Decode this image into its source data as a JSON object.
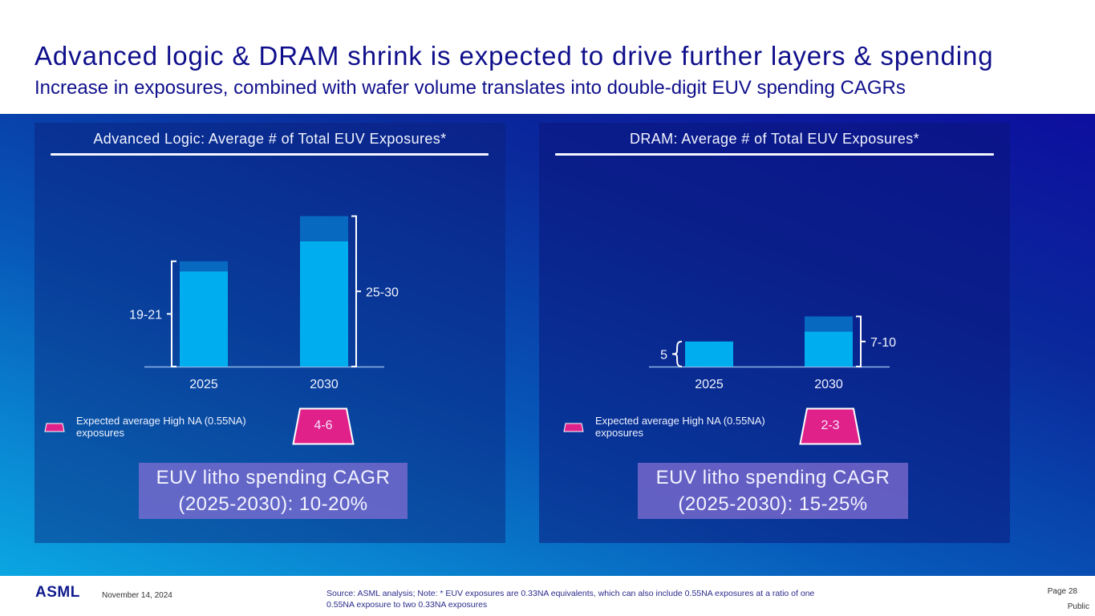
{
  "header": {
    "title": "Advanced logic & DRAM shrink is expected to drive further layers & spending",
    "subtitle": "Increase in exposures, combined with wafer volume translates into double-digit EUV spending CAGRs"
  },
  "colors": {
    "low_na_bar": "#00aeef",
    "high_na_segment": "#0869c0",
    "high_na_badge": "#e0218a",
    "cagr_box": "#7b6bd0",
    "title_text": "#0f0f8c"
  },
  "chart_data": [
    {
      "type": "bar",
      "stacked": true,
      "title": "Advanced Logic: Average # of Total EUV Exposures*",
      "categories": [
        "2025",
        "2030"
      ],
      "series": [
        {
          "name": "0.33NA exposures",
          "values": [
            19,
            25
          ]
        },
        {
          "name": "Expected average High NA (0.55NA) exposures (upper range)",
          "values": [
            2,
            5
          ]
        }
      ],
      "totals": [
        21,
        30
      ],
      "range_labels": [
        "19-21",
        "25-30"
      ],
      "ylim": [
        0,
        32
      ],
      "grid": false,
      "high_na_label": "4-6"
    },
    {
      "type": "bar",
      "stacked": true,
      "title": "DRAM: Average # of Total EUV Exposures*",
      "categories": [
        "2025",
        "2030"
      ],
      "series": [
        {
          "name": "0.33NA exposures",
          "values": [
            5,
            7
          ]
        },
        {
          "name": "Expected average High NA (0.55NA) exposures (upper range)",
          "values": [
            0,
            3
          ]
        }
      ],
      "totals": [
        5,
        10
      ],
      "range_labels": [
        "5",
        "7-10"
      ],
      "ylim": [
        0,
        32
      ],
      "grid": false,
      "high_na_label": "2-3"
    }
  ],
  "legend": {
    "label": "Expected average High NA (0.55NA) exposures"
  },
  "panels": [
    {
      "cagr_line1": "EUV litho spending CAGR",
      "cagr_line2": "(2025-2030): 10-20%"
    },
    {
      "cagr_line1": "EUV litho spending CAGR",
      "cagr_line2": "(2025-2030): 15-25%"
    }
  ],
  "footer": {
    "logo": "ASML",
    "date": "November 14, 2024",
    "source": "Source: ASML analysis; Note: * EUV exposures are 0.33NA equivalents, which can also include 0.55NA exposures at a ratio of one 0.55NA exposure to two 0.33NA exposures",
    "page": "Page 28",
    "classification": "Public"
  }
}
